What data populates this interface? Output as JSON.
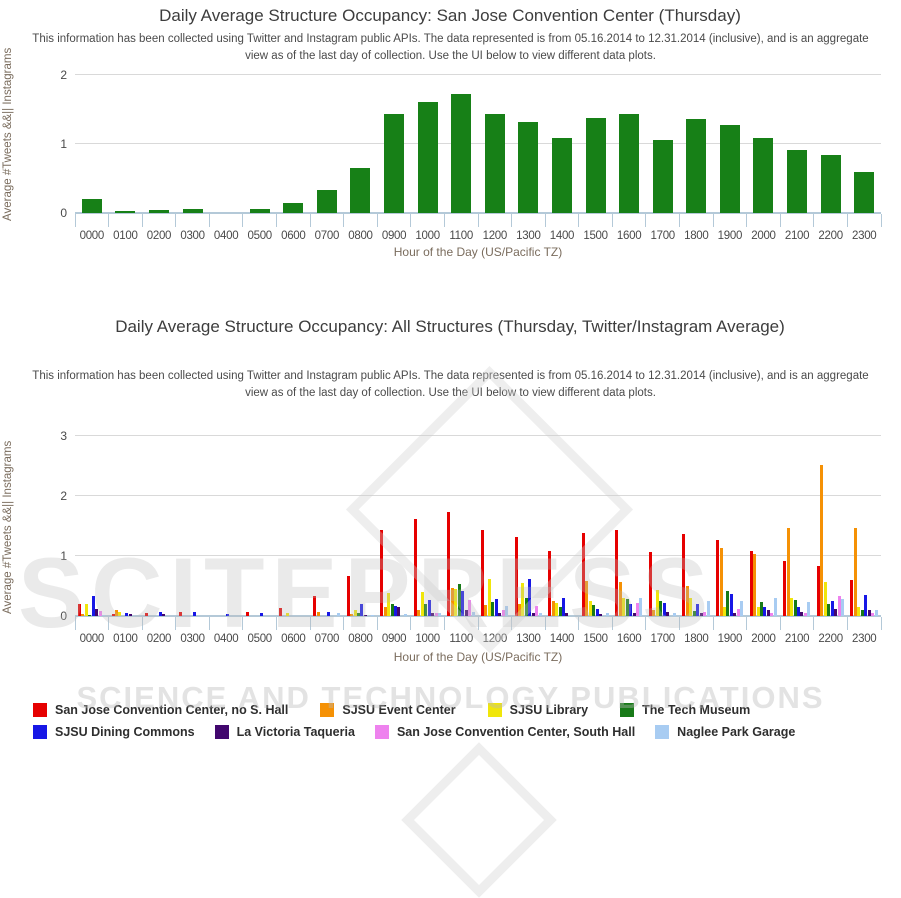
{
  "watermark": {
    "big_text": "SCITEPRESS",
    "small_text": "SCIENCE AND TECHNOLOGY PUBLICATIONS"
  },
  "chart_data": [
    {
      "type": "bar",
      "title": "Daily Average Structure Occupancy: San Jose Convention Center (Thursday)",
      "subtitle": "This information has been collected using Twitter and Instagram public APIs. The data represented is from 05.16.2014 to 12.31.2014 (inclusive), and is an aggregate view as of the last day of collection. Use the UI below to view different data plots.",
      "xlabel": "Hour of the Day (US/Pacific TZ)",
      "ylabel": "Average #Tweets &&|| Instagrams",
      "ylim": [
        0,
        2
      ],
      "yticks": [
        0,
        1,
        2
      ],
      "grid": true,
      "bar_color": "#178017",
      "categories": [
        "0000",
        "0100",
        "0200",
        "0300",
        "0400",
        "0500",
        "0600",
        "0700",
        "0800",
        "0900",
        "1000",
        "1100",
        "1200",
        "1300",
        "1400",
        "1500",
        "1600",
        "1700",
        "1800",
        "1900",
        "2000",
        "2100",
        "2200",
        "2300"
      ],
      "values": [
        0.2,
        0.03,
        0.05,
        0.06,
        0,
        0.06,
        0.14,
        0.33,
        0.65,
        1.43,
        1.61,
        1.73,
        1.43,
        1.32,
        1.09,
        1.38,
        1.44,
        1.06,
        1.36,
        1.27,
        1.08,
        0.92,
        0.84,
        0.6
      ]
    },
    {
      "type": "bar",
      "title": "Daily Average Structure Occupancy: All Structures (Thursday, Twitter/Instagram Average)",
      "subtitle": "This information has been collected using Twitter and Instagram public APIs. The data represented is from 05.16.2014 to 12.31.2014 (inclusive), and is an aggregate view as of the last day of collection. Use the UI below to view different data plots.",
      "xlabel": "Hour of the Day (US/Pacific TZ)",
      "ylabel": "Average #Tweets &&|| Instagrams",
      "ylim": [
        0,
        3
      ],
      "yticks": [
        0,
        1,
        2,
        3
      ],
      "grid": true,
      "legend_position": "bottom",
      "categories": [
        "0000",
        "0100",
        "0200",
        "0300",
        "0400",
        "0500",
        "0600",
        "0700",
        "0800",
        "0900",
        "1000",
        "1100",
        "1200",
        "1300",
        "1400",
        "1500",
        "1600",
        "1700",
        "1800",
        "1900",
        "2000",
        "2100",
        "2200",
        "2300"
      ],
      "series": [
        {
          "name": "San Jose Convention Center, no S. Hall",
          "color": "#e60000",
          "values": [
            0.2,
            0.03,
            0.05,
            0.06,
            0,
            0.06,
            0.13,
            0.33,
            0.66,
            1.43,
            1.61,
            1.73,
            1.43,
            1.32,
            1.09,
            1.38,
            1.44,
            1.06,
            1.36,
            1.27,
            1.08,
            0.92,
            0.84,
            0.6
          ]
        },
        {
          "name": "SJSU Event Center",
          "color": "#f59105",
          "values": [
            0.04,
            0.1,
            0,
            0,
            0,
            0,
            0,
            0.06,
            0.04,
            0.15,
            0.1,
            0.46,
            0.18,
            0.2,
            0.25,
            0.58,
            0.56,
            0.1,
            0.5,
            1.14,
            1.03,
            1.46,
            2.52,
            1.46
          ]
        },
        {
          "name": "SJSU Library",
          "color": "#f0e60a",
          "values": [
            0.2,
            0.06,
            0,
            0,
            0,
            0,
            0.05,
            0,
            0.1,
            0.38,
            0.4,
            0.45,
            0.62,
            0.55,
            0.22,
            0.25,
            0.3,
            0.43,
            0.3,
            0.15,
            0.15,
            0.3,
            0.56,
            0.15
          ]
        },
        {
          "name": "The Tech Museum",
          "color": "#187a18",
          "values": [
            0.02,
            0,
            0,
            0,
            0,
            0,
            0,
            0,
            0.05,
            0.2,
            0.2,
            0.54,
            0.23,
            0.3,
            0.15,
            0.18,
            0.28,
            0.25,
            0.08,
            0.42,
            0.23,
            0.27,
            0.2,
            0.1
          ]
        },
        {
          "name": "SJSU Dining Commons",
          "color": "#1717e6",
          "values": [
            0.33,
            0.05,
            0.06,
            0.06,
            0.04,
            0.05,
            0,
            0.07,
            0.2,
            0.17,
            0.27,
            0.41,
            0.28,
            0.62,
            0.3,
            0.12,
            0.2,
            0.22,
            0.2,
            0.36,
            0.15,
            0.15,
            0.25,
            0.35
          ]
        },
        {
          "name": "La Victoria Taqueria",
          "color": "#42076e",
          "values": [
            0.12,
            0.04,
            0.04,
            0,
            0,
            0,
            0,
            0,
            0.02,
            0.15,
            0.05,
            0.1,
            0.05,
            0.05,
            0.05,
            0.04,
            0.05,
            0.06,
            0.05,
            0.05,
            0.1,
            0.07,
            0.12,
            0.1
          ]
        },
        {
          "name": "San Jose Convention Center, South Hall",
          "color": "#ee82ee",
          "values": [
            0.08,
            0,
            0,
            0,
            0,
            0,
            0,
            0,
            0,
            0,
            0.05,
            0.26,
            0.1,
            0.17,
            0,
            0,
            0.22,
            0,
            0.07,
            0.12,
            0.05,
            0.05,
            0.33,
            0.05
          ]
        },
        {
          "name": "Naglee Park Garage",
          "color": "#a8ccf2",
          "values": [
            0.02,
            0,
            0,
            0,
            0,
            0,
            0,
            0.05,
            0.02,
            0.03,
            0.05,
            0.06,
            0.16,
            0.05,
            0,
            0.05,
            0.3,
            0.05,
            0.25,
            0.25,
            0.3,
            0.23,
            0.28,
            0.1
          ]
        }
      ]
    }
  ]
}
